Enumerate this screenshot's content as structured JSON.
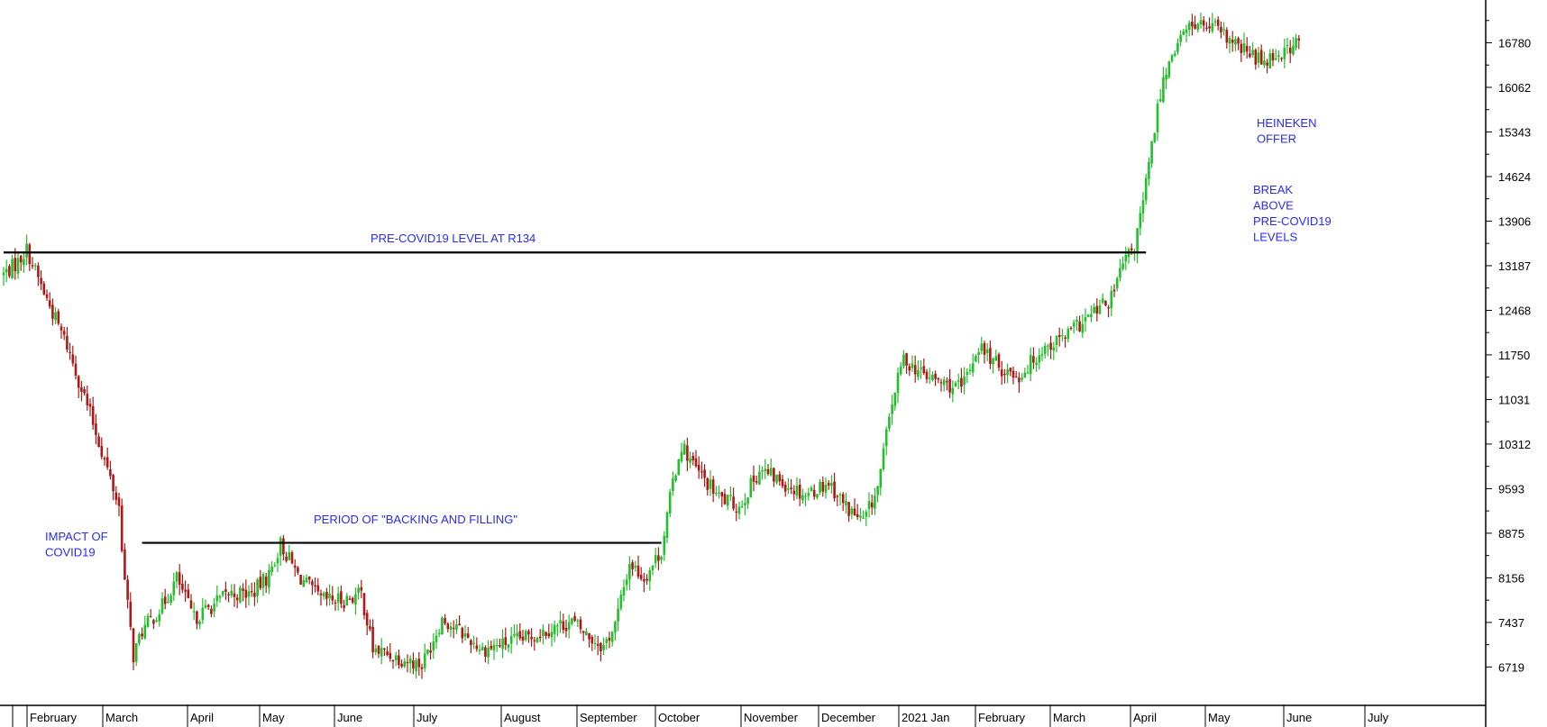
{
  "chart_data": {
    "type": "candlestick",
    "title": "",
    "colors": {
      "up": "#22c02a",
      "down": "#b01818",
      "wick": "#000000",
      "annotation": "#2a2aff",
      "axis": "#000000",
      "background": "#ffffff"
    },
    "y_axis": {
      "position": "right",
      "ticks": [
        6719,
        7437,
        8156,
        8875,
        9593,
        10312,
        11031,
        11750,
        12468,
        13187,
        13906,
        14624,
        15343,
        16062,
        16780
      ],
      "range": [
        6100,
        17470
      ]
    },
    "x_axis": {
      "months": [
        "February",
        "March",
        "April",
        "May",
        "June",
        "July",
        "August",
        "September",
        "October",
        "November",
        "December",
        "2021 Jan",
        "February",
        "March",
        "April",
        "May",
        "June",
        "July"
      ]
    },
    "price_path": [
      {
        "d": 0,
        "v": 13050
      },
      {
        "d": 5,
        "v": 13250
      },
      {
        "d": 8,
        "v": 13450
      },
      {
        "d": 14,
        "v": 12750
      },
      {
        "d": 22,
        "v": 11900
      },
      {
        "d": 30,
        "v": 10800
      },
      {
        "d": 36,
        "v": 9900
      },
      {
        "d": 40,
        "v": 9300
      },
      {
        "d": 42,
        "v": 8100
      },
      {
        "d": 45,
        "v": 6900
      },
      {
        "d": 48,
        "v": 7300
      },
      {
        "d": 55,
        "v": 7700
      },
      {
        "d": 60,
        "v": 8150
      },
      {
        "d": 66,
        "v": 7500
      },
      {
        "d": 72,
        "v": 7700
      },
      {
        "d": 78,
        "v": 7900
      },
      {
        "d": 86,
        "v": 7900
      },
      {
        "d": 92,
        "v": 8200
      },
      {
        "d": 96,
        "v": 8700
      },
      {
        "d": 102,
        "v": 8200
      },
      {
        "d": 110,
        "v": 7800
      },
      {
        "d": 118,
        "v": 7800
      },
      {
        "d": 124,
        "v": 7900
      },
      {
        "d": 128,
        "v": 7000
      },
      {
        "d": 135,
        "v": 6900
      },
      {
        "d": 145,
        "v": 6750
      },
      {
        "d": 152,
        "v": 7500
      },
      {
        "d": 158,
        "v": 7300
      },
      {
        "d": 166,
        "v": 7000
      },
      {
        "d": 174,
        "v": 7100
      },
      {
        "d": 182,
        "v": 7200
      },
      {
        "d": 190,
        "v": 7350
      },
      {
        "d": 197,
        "v": 7450
      },
      {
        "d": 203,
        "v": 7200
      },
      {
        "d": 208,
        "v": 7050
      },
      {
        "d": 212,
        "v": 7400
      },
      {
        "d": 217,
        "v": 8400
      },
      {
        "d": 222,
        "v": 8150
      },
      {
        "d": 228,
        "v": 8600
      },
      {
        "d": 232,
        "v": 9700
      },
      {
        "d": 235,
        "v": 10300
      },
      {
        "d": 240,
        "v": 9900
      },
      {
        "d": 248,
        "v": 9450
      },
      {
        "d": 255,
        "v": 9300
      },
      {
        "d": 262,
        "v": 9900
      },
      {
        "d": 270,
        "v": 9700
      },
      {
        "d": 278,
        "v": 9500
      },
      {
        "d": 286,
        "v": 9700
      },
      {
        "d": 292,
        "v": 9300
      },
      {
        "d": 298,
        "v": 9050
      },
      {
        "d": 303,
        "v": 9600
      },
      {
        "d": 308,
        "v": 11000
      },
      {
        "d": 312,
        "v": 11700
      },
      {
        "d": 318,
        "v": 11450
      },
      {
        "d": 325,
        "v": 11300
      },
      {
        "d": 332,
        "v": 11200
      },
      {
        "d": 338,
        "v": 11900
      },
      {
        "d": 345,
        "v": 11550
      },
      {
        "d": 352,
        "v": 11400
      },
      {
        "d": 360,
        "v": 11850
      },
      {
        "d": 368,
        "v": 12050
      },
      {
        "d": 376,
        "v": 12350
      },
      {
        "d": 384,
        "v": 12650
      },
      {
        "d": 388,
        "v": 13200
      },
      {
        "d": 392,
        "v": 13500
      },
      {
        "d": 395,
        "v": 14200
      },
      {
        "d": 398,
        "v": 15100
      },
      {
        "d": 401,
        "v": 16000
      },
      {
        "d": 405,
        "v": 16650
      },
      {
        "d": 412,
        "v": 17100
      },
      {
        "d": 420,
        "v": 17000
      },
      {
        "d": 428,
        "v": 16700
      },
      {
        "d": 436,
        "v": 16500
      },
      {
        "d": 444,
        "v": 16650
      },
      {
        "d": 449,
        "v": 16800
      }
    ],
    "levels": [
      {
        "name": "pre-covid-level-line",
        "value": 13400,
        "from_day": 0,
        "to_day": 396
      },
      {
        "name": "backing-filling-line",
        "value": 8720,
        "from_day": 48,
        "to_day": 228
      }
    ],
    "annotations": [
      {
        "name": "annotation-precovid-level",
        "lines": [
          "PRE-COVID19 LEVEL AT R134"
        ]
      },
      {
        "name": "annotation-backing-filling",
        "lines": [
          "PERIOD OF \"BACKING AND FILLING\""
        ]
      },
      {
        "name": "annotation-impact-covid",
        "lines": [
          "IMPACT OF",
          "COVID19"
        ]
      },
      {
        "name": "annotation-break-above",
        "lines": [
          "BREAK",
          "ABOVE",
          "PRE-COVID19",
          "LEVELS"
        ]
      },
      {
        "name": "annotation-heineken-offer",
        "lines": [
          "HEINEKEN",
          "OFFER"
        ]
      }
    ]
  }
}
